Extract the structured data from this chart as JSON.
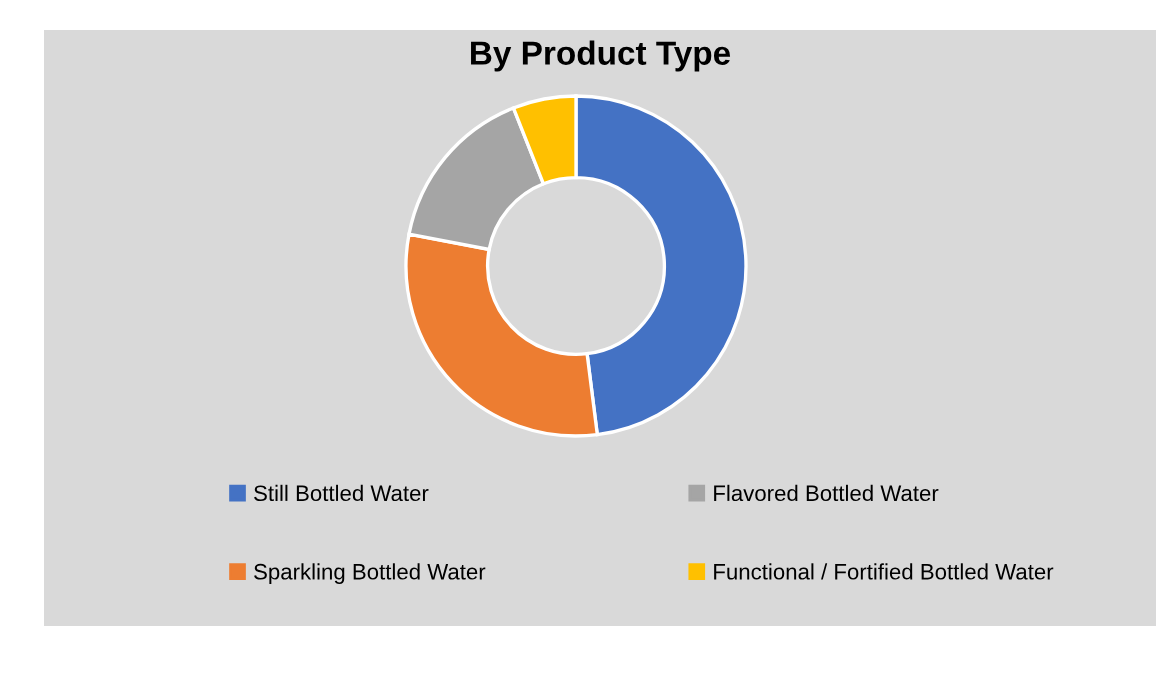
{
  "chart_data": {
    "type": "donut",
    "title": "By Product Type",
    "categories": [
      "Still Bottled Water",
      "Sparkling Bottled Water",
      "Flavored Bottled Water",
      "Functional / Fortified Bottled Water"
    ],
    "values": [
      48,
      30,
      16,
      6
    ],
    "colors": [
      "#4472c4",
      "#ed7d31",
      "#a5a5a5",
      "#ffc000"
    ],
    "legend": "bottom"
  }
}
